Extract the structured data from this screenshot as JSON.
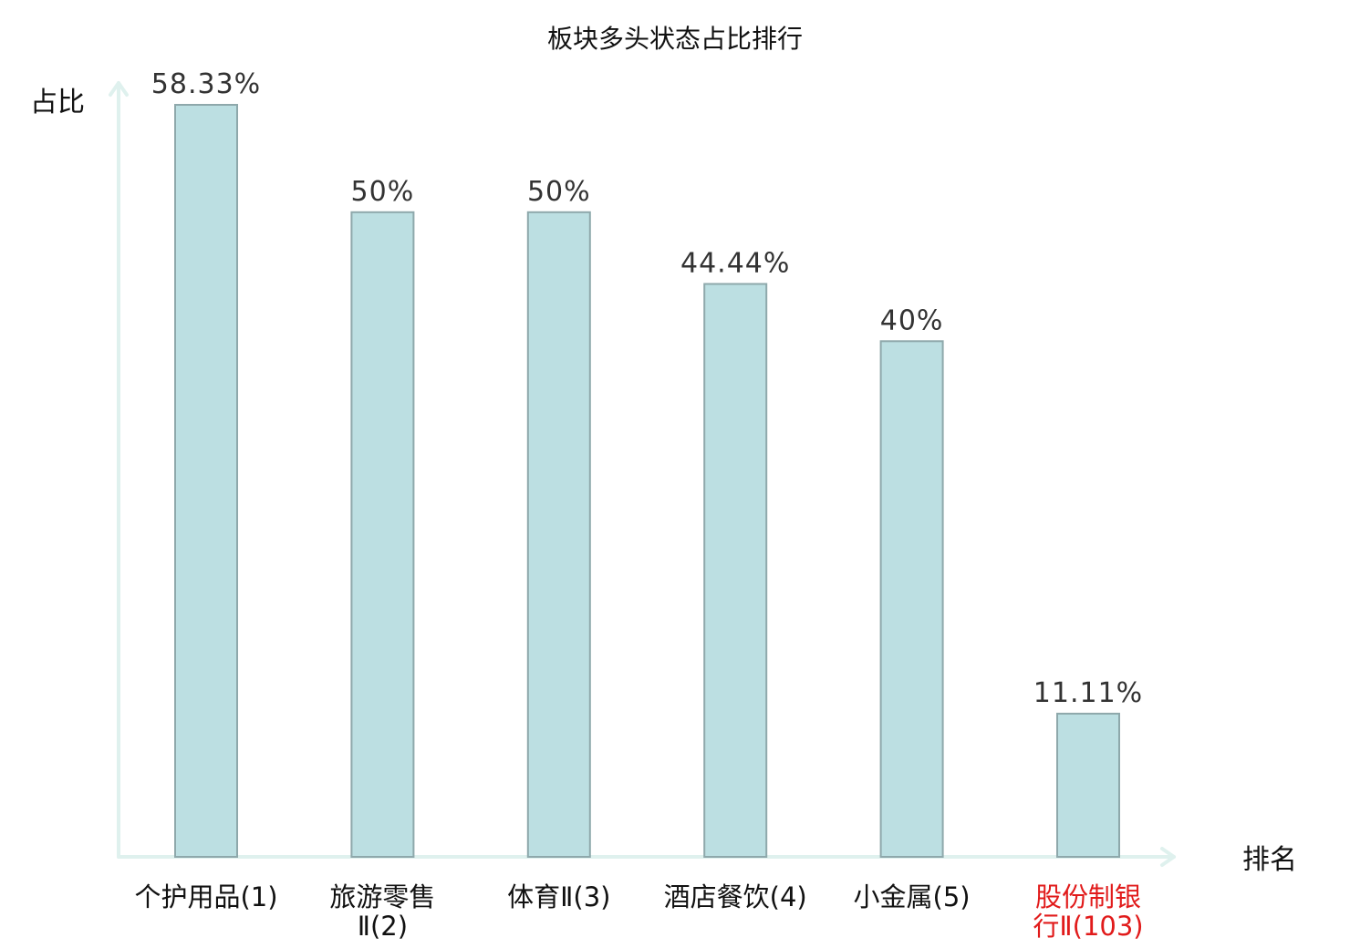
{
  "chart_data": {
    "type": "bar",
    "title": "板块多头状态占比排行",
    "xlabel": "排名",
    "ylabel": "占比",
    "categories": [
      [
        "个护用品(1)"
      ],
      [
        "旅游零售",
        "Ⅱ(2)"
      ],
      [
        "体育Ⅱ(3)"
      ],
      [
        "酒店餐饮(4)"
      ],
      [
        "小金属(5)"
      ],
      [
        "股份制银",
        "行Ⅱ(103)"
      ]
    ],
    "values": [
      58.33,
      50,
      50,
      44.44,
      40,
      11.11
    ],
    "value_labels": [
      "58.33%",
      "50%",
      "50%",
      "44.44%",
      "40%",
      "11.11%"
    ],
    "highlight_index": 5,
    "ylim": [
      0,
      60
    ],
    "grid": false,
    "legend": "none",
    "colors": {
      "bar_fill": "#bcdfe2",
      "bar_stroke": "#8ea8ab",
      "axis": "#dff1ee",
      "highlight_text": "#e11b1b",
      "value_text": "#333333"
    }
  }
}
